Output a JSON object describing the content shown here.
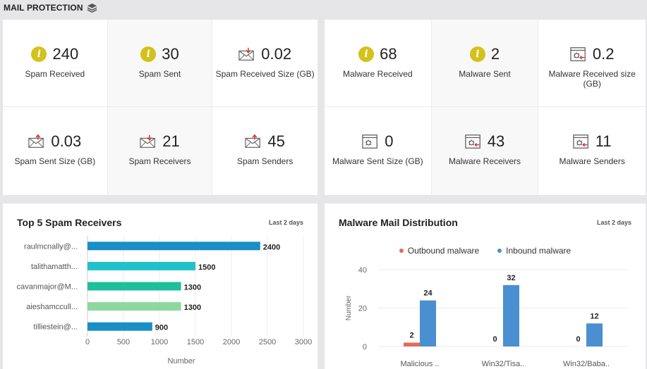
{
  "header": {
    "title": "MAIL PROTECTION",
    "icon": "layers-icon"
  },
  "spam_metrics": [
    {
      "value": "240",
      "label": "Spam Received",
      "icon": "info-icon"
    },
    {
      "value": "30",
      "label": "Spam Sent",
      "icon": "info-icon"
    },
    {
      "value": "0.02",
      "label": "Spam Received Size (GB)",
      "icon": "envelope-in-icon"
    },
    {
      "value": "0.03",
      "label": "Spam Sent Size (GB)",
      "icon": "envelope-out-icon"
    },
    {
      "value": "21",
      "label": "Spam Receivers",
      "icon": "envelope-in-icon"
    },
    {
      "value": "45",
      "label": "Spam Senders",
      "icon": "envelope-out-icon"
    }
  ],
  "malware_metrics": [
    {
      "value": "68",
      "label": "Malware Received",
      "icon": "info-icon"
    },
    {
      "value": "2",
      "label": "Malware Sent",
      "icon": "info-icon"
    },
    {
      "value": "0.2",
      "label": "Malware Received size (GB)",
      "icon": "bug-window-in-icon"
    },
    {
      "value": "0",
      "label": "Malware Sent Size (GB)",
      "icon": "bug-window-icon"
    },
    {
      "value": "43",
      "label": "Malware Receivers",
      "icon": "bug-window-in-icon"
    },
    {
      "value": "11",
      "label": "Malware Senders",
      "icon": "bug-window-in-icon"
    }
  ],
  "spam_chart": {
    "title": "Top 5 Spam Receivers",
    "period": "Last 2 days"
  },
  "malware_chart": {
    "title": "Malware Mail Distribution",
    "period": "Last 2 days"
  },
  "colors": {
    "info": "#d4c11a",
    "bar1": "#1a8ec6",
    "bar2": "#22c1c9",
    "bar3": "#1fbf9a",
    "bar4": "#8ed8a0",
    "bar5": "#1a8ec6",
    "outbound": "#e8685a",
    "inbound": "#4a8fd0"
  },
  "chart_data": [
    {
      "type": "bar",
      "orientation": "horizontal",
      "title": "Top 5 Spam Receivers",
      "categories": [
        "raulmcnally@...",
        "talithamatth...",
        "cavanmajor@M...",
        "aieshamccull...",
        "tilliestein@..."
      ],
      "values": [
        2400,
        1500,
        1300,
        1300,
        900
      ],
      "xlabel": "Number",
      "ylabel": "",
      "xlim": [
        0,
        3000
      ],
      "xticks": [
        "0",
        "500",
        "1000",
        "1500",
        "2000",
        "2500",
        "3000"
      ],
      "grid": true
    },
    {
      "type": "bar",
      "title": "Malware Mail Distribution",
      "categories": [
        "Malicious ..",
        "Win32/Tisa..",
        "Win32/Baba.."
      ],
      "series": [
        {
          "name": "Outbound malware",
          "values": [
            2,
            0,
            0
          ]
        },
        {
          "name": "Inbound malware",
          "values": [
            24,
            32,
            12
          ]
        }
      ],
      "xlabel": "",
      "ylabel": "Number",
      "ylim": [
        0,
        40
      ],
      "yticks": [
        "0",
        "20",
        "40"
      ],
      "legend": "top-center",
      "grid": true
    }
  ]
}
